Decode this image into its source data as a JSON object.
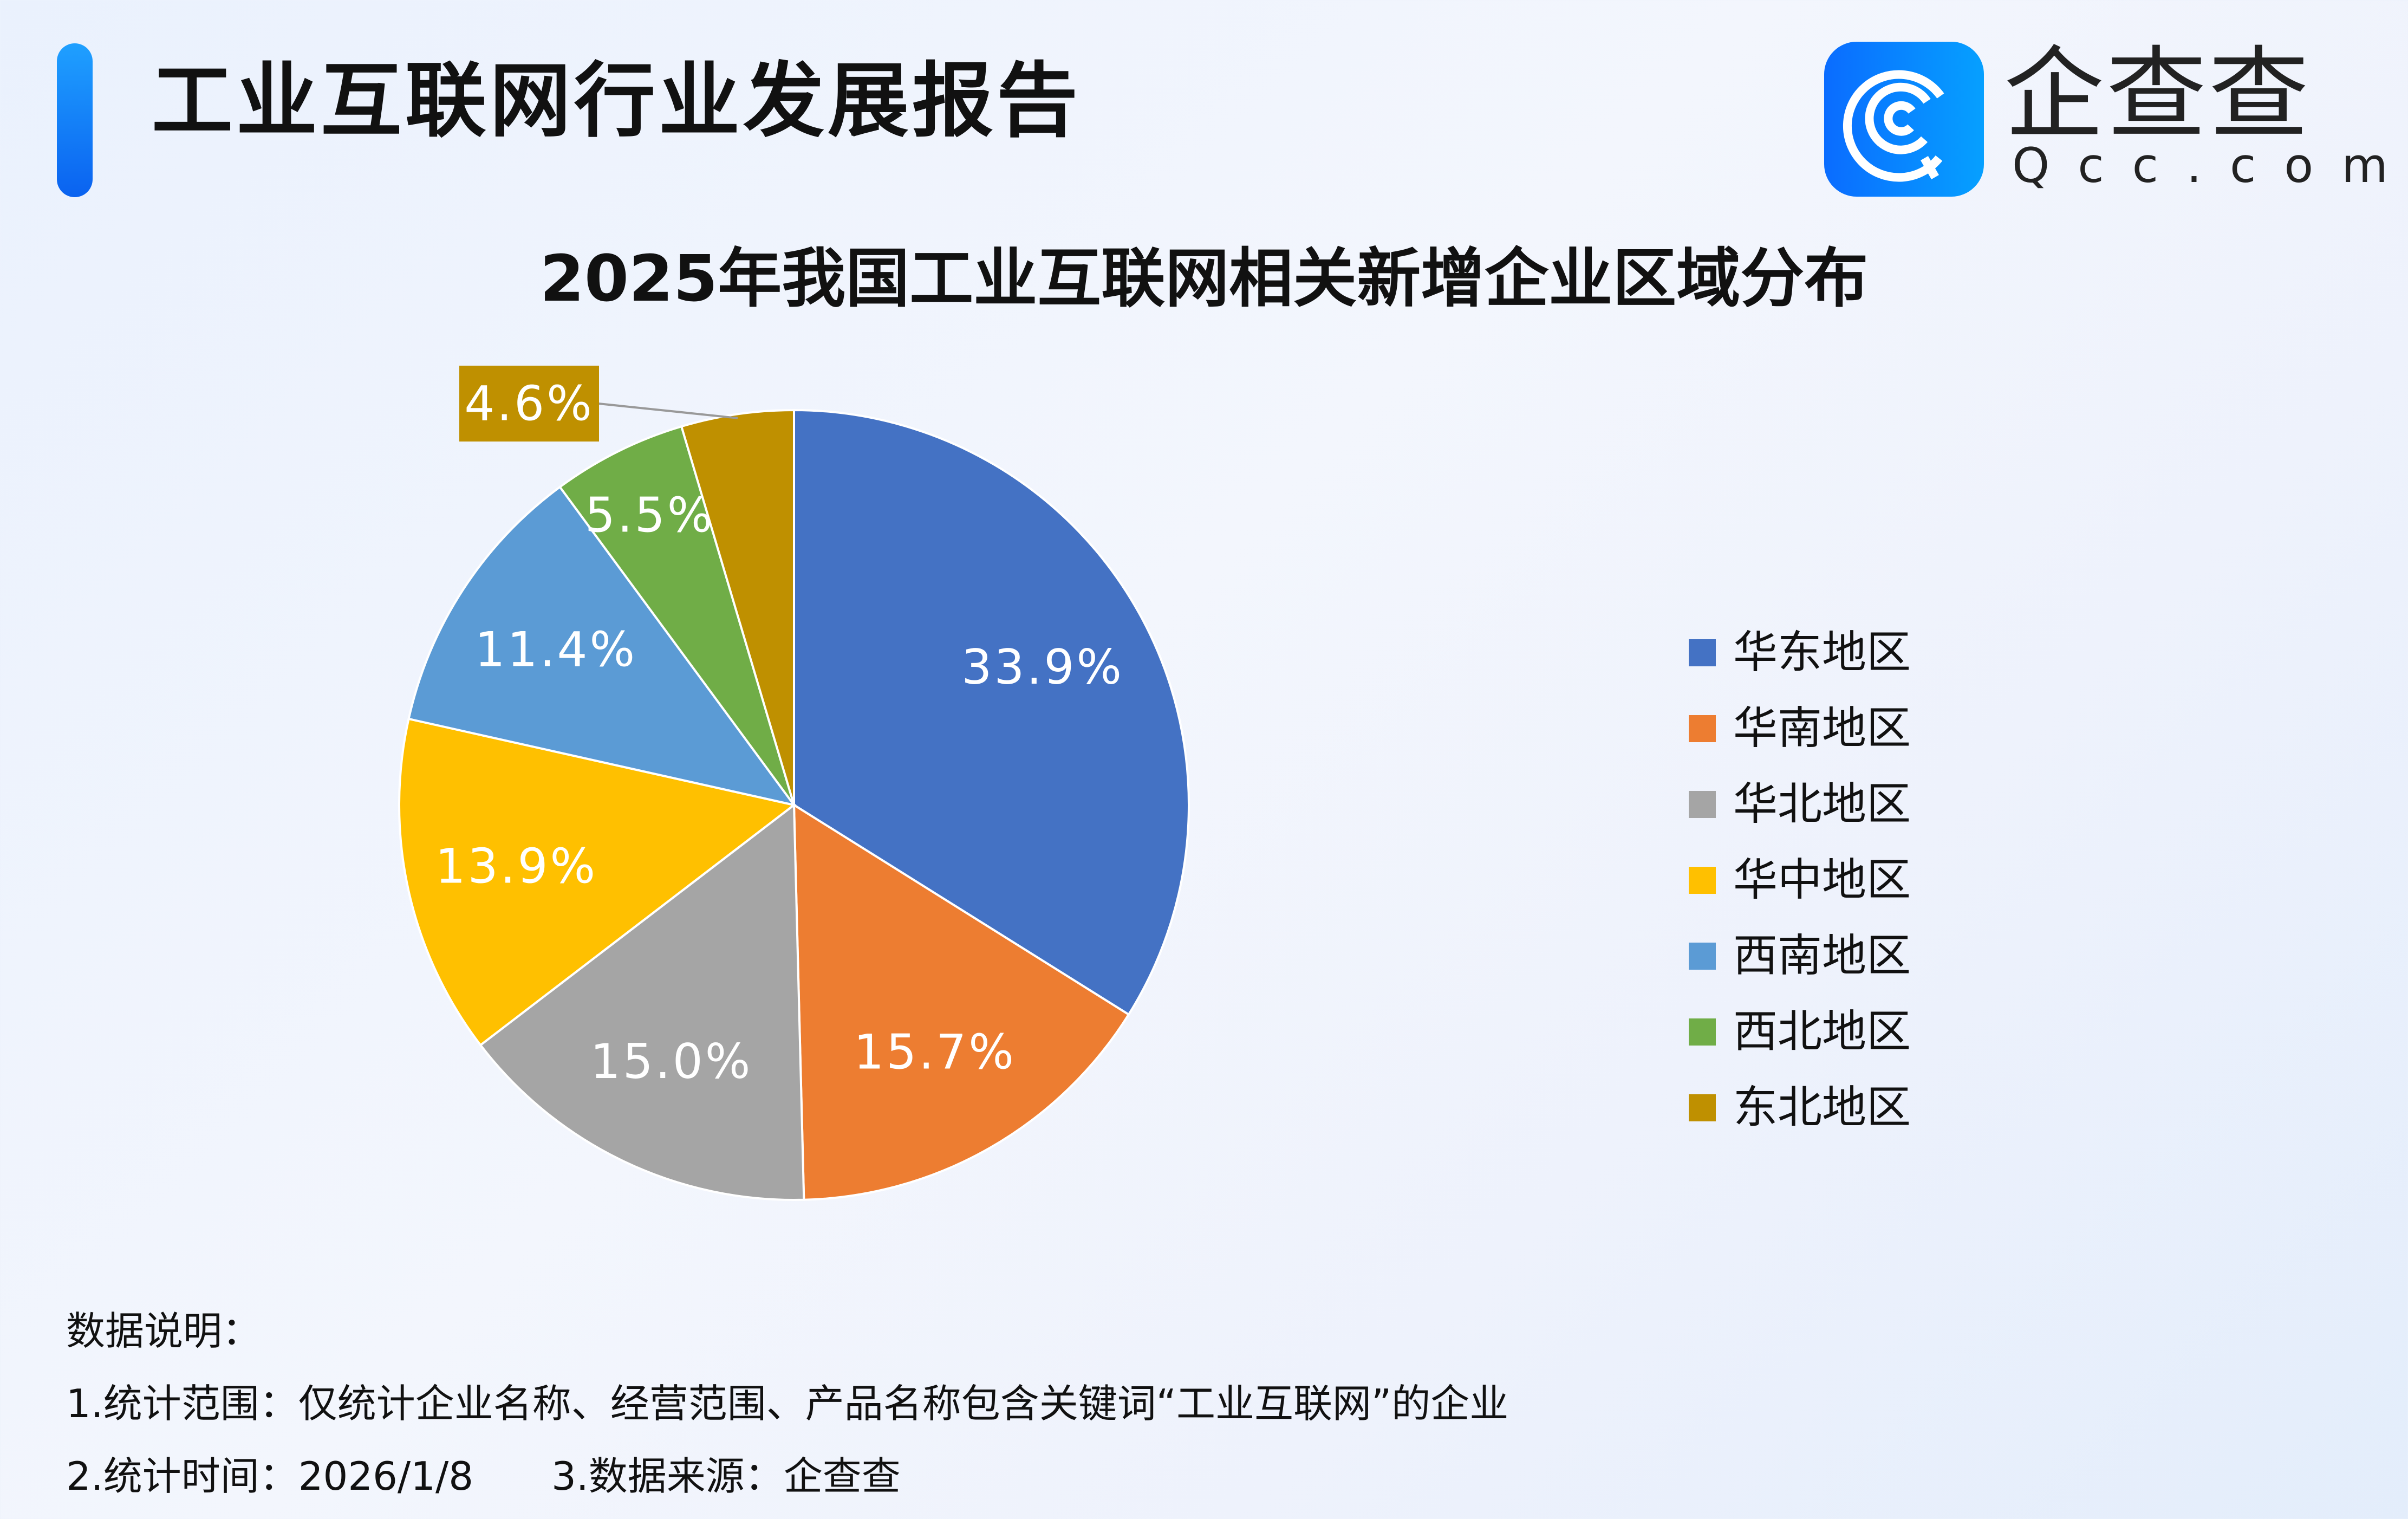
{
  "header": {
    "title": "工业互联网行业发展报告"
  },
  "logo": {
    "cn": "企查查",
    "en": "Qcc.com"
  },
  "chart_data": {
    "type": "pie",
    "title": "2025年我国工业互联网相关新增企业区域分布",
    "categories": [
      "华东地区",
      "华南地区",
      "华北地区",
      "华中地区",
      "西南地区",
      "西北地区",
      "东北地区"
    ],
    "values": [
      33.9,
      15.7,
      15.0,
      13.9,
      11.4,
      5.5,
      4.6
    ],
    "labels": [
      "33.9%",
      "15.7%",
      "15.0%",
      "13.9%",
      "11.4%",
      "5.5%",
      "4.6%"
    ],
    "colors": [
      "#4472C4",
      "#ED7D31",
      "#A5A5A5",
      "#FFC000",
      "#5B9BD5",
      "#70AD47",
      "#BF9000"
    ],
    "start": "top, clockwise",
    "legend_position": "right"
  },
  "footer": {
    "heading": "数据说明：",
    "line1": "1.统计范围：仅统计企业名称、经营范围、产品名称包含关键词“工业互联网”的企业",
    "line2": "2.统计时间：2026/1/8　　3.数据来源：企查查"
  }
}
